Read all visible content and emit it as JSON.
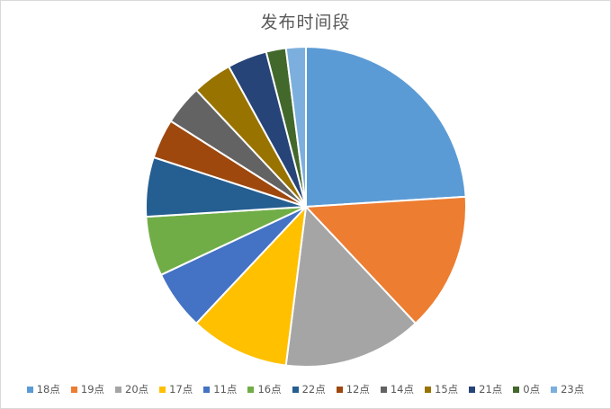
{
  "chart_data": {
    "type": "pie",
    "title": "发布时间段",
    "categories": [
      "18点",
      "19点",
      "20点",
      "17点",
      "11点",
      "16点",
      "22点",
      "12点",
      "14点",
      "15点",
      "21点",
      "0点",
      "23点"
    ],
    "values": [
      24,
      14,
      14,
      10,
      6,
      6,
      6,
      4,
      4,
      4,
      4,
      2,
      2
    ],
    "colors": [
      "#5b9bd5",
      "#ed7d31",
      "#a5a5a5",
      "#ffc000",
      "#4472c4",
      "#70ad47",
      "#255e91",
      "#9e480e",
      "#636363",
      "#997300",
      "#264478",
      "#43682b",
      "#7cafdd"
    ],
    "legend_position": "bottom"
  }
}
